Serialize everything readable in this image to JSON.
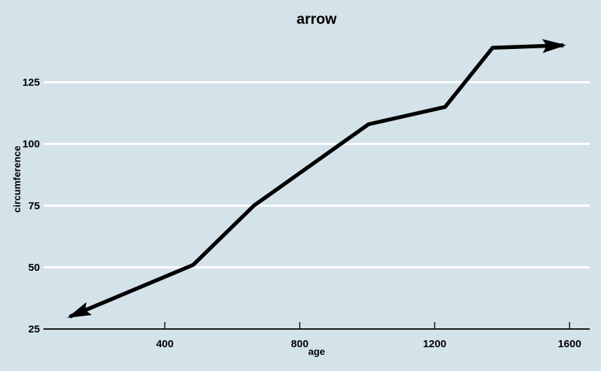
{
  "chart_data": {
    "type": "line",
    "title": "arrow",
    "xlabel": "age",
    "ylabel": "circumference",
    "x": [
      118,
      484,
      664,
      1004,
      1231,
      1372,
      1582
    ],
    "y": [
      30,
      51,
      75,
      108,
      115,
      139,
      140
    ],
    "xticks": [
      400,
      800,
      1200,
      1600
    ],
    "yticks": [
      25,
      50,
      75,
      100,
      125
    ],
    "xlim": [
      40,
      1660
    ],
    "ylim": [
      25,
      147
    ],
    "grid": "horizontal gridlines only",
    "legend": "none",
    "arrows": "both-ends",
    "colors": {
      "background": "#d4e2e9",
      "line": "#000000",
      "gridline": "#ffffff",
      "axis": "#111111",
      "text": "#000000"
    }
  }
}
